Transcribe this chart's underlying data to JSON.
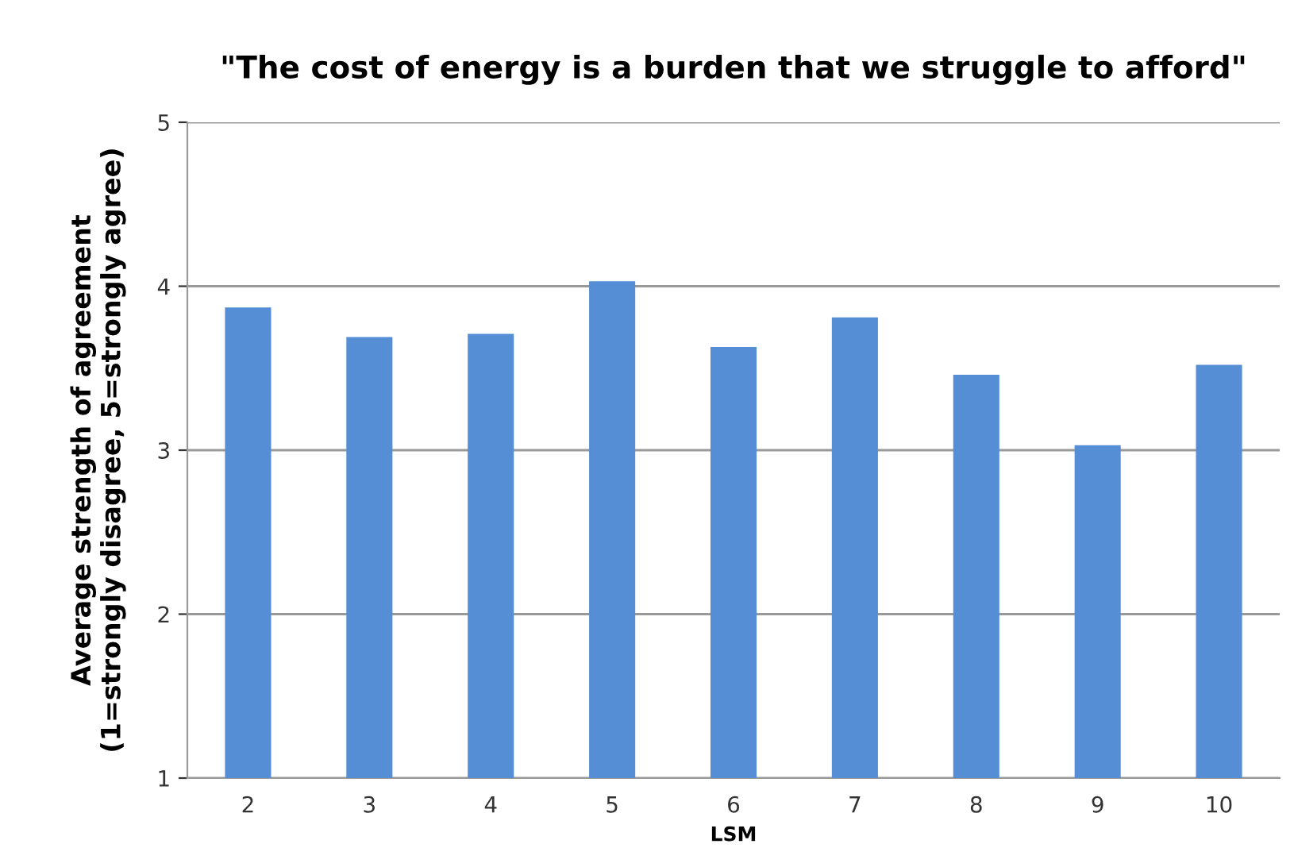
{
  "chart_data": {
    "type": "bar",
    "title": "\"The cost of energy is a burden that we struggle to afford\"",
    "xlabel": "LSM",
    "ylabel": "Average strength of agreement\n(1=strongly disagree, 5=strongly agree)",
    "categories": [
      "2",
      "3",
      "4",
      "5",
      "6",
      "7",
      "8",
      "9",
      "10"
    ],
    "values": [
      3.87,
      3.69,
      3.71,
      4.03,
      3.63,
      3.81,
      3.46,
      3.03,
      3.52
    ],
    "color": "#558ed5",
    "ylim": [
      1,
      5
    ],
    "yticks": [
      1,
      2,
      3,
      4,
      5
    ],
    "grid": "y",
    "legend": false
  }
}
